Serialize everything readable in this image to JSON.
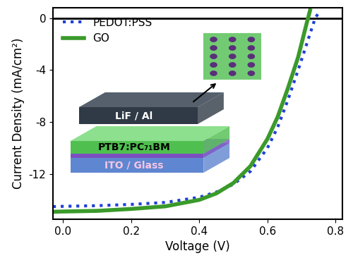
{
  "chart_data": {
    "type": "line",
    "x_label": "Voltage (V)",
    "y_label": "Current Density (mA/cm²)",
    "xlim": [
      -0.03,
      0.82
    ],
    "xticks": [
      0.0,
      0.2,
      0.4,
      0.6,
      0.8
    ],
    "ylim": [
      -15.5,
      0.8
    ],
    "yticks": [
      -12,
      -8,
      -4,
      0
    ],
    "legend": "upper left",
    "annotations": [
      "LiF / Al",
      "PTB7:PC₇₁BM",
      "ITO / Glass"
    ],
    "series": [
      {
        "name": "PEDOT:PSS",
        "color": "#1f3fd8",
        "line_style": "dotted",
        "x": [
          -0.03,
          0.0,
          0.1,
          0.2,
          0.3,
          0.4,
          0.45,
          0.5,
          0.55,
          0.6,
          0.63,
          0.66,
          0.69,
          0.72,
          0.74,
          0.755
        ],
        "values": [
          -14.52,
          -14.5,
          -14.45,
          -14.35,
          -14.2,
          -13.8,
          -13.4,
          -12.8,
          -11.8,
          -10.0,
          -8.4,
          -6.3,
          -4.0,
          -1.6,
          0.0,
          0.6
        ]
      },
      {
        "name": "GO",
        "color": "#3a9a2a",
        "line_style": "solid",
        "x": [
          -0.03,
          0.0,
          0.1,
          0.2,
          0.3,
          0.4,
          0.45,
          0.5,
          0.55,
          0.6,
          0.63,
          0.66,
          0.69,
          0.715,
          0.725
        ],
        "values": [
          -14.92,
          -14.9,
          -14.85,
          -14.7,
          -14.5,
          -14.0,
          -13.5,
          -12.7,
          -11.4,
          -9.3,
          -7.6,
          -5.4,
          -3.0,
          -0.4,
          0.6
        ]
      }
    ]
  }
}
